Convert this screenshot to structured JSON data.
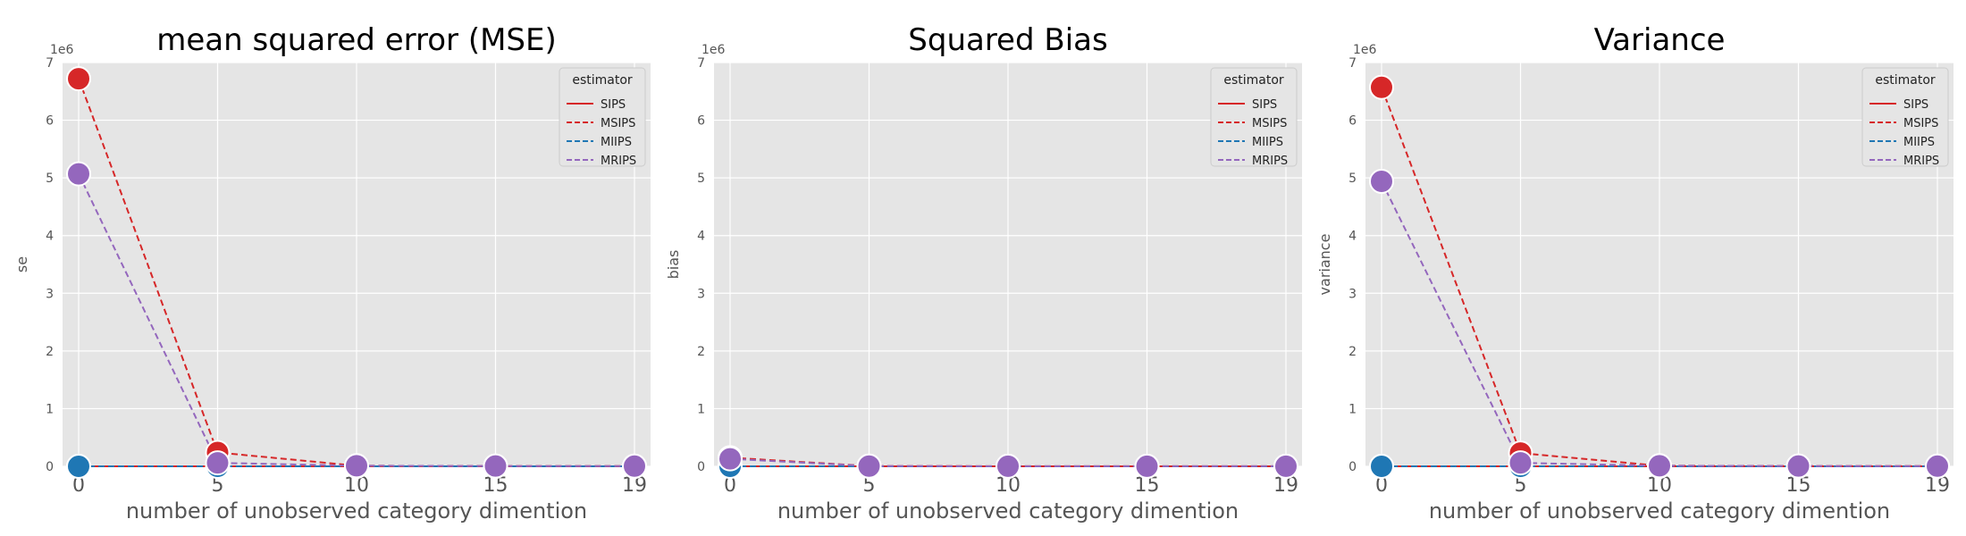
{
  "chart_data": [
    {
      "type": "line",
      "title": "mean squared error (MSE)",
      "xlabel": "number of unobserved category dimention",
      "ylabel": "se",
      "y_offset_label": "1e6",
      "categories": [
        "0",
        "5",
        "10",
        "15",
        "19"
      ],
      "yticks": [
        "0",
        "1",
        "2",
        "3",
        "4",
        "5",
        "6",
        "7"
      ],
      "ylim": [
        0,
        7
      ],
      "grid": true,
      "legend_title": "estimator",
      "legend_position": "top-right",
      "series": [
        {
          "name": "SIPS",
          "color": "#d62728",
          "dash": "solid",
          "values": [
            0,
            0,
            0,
            0,
            0
          ]
        },
        {
          "name": "MSIPS",
          "color": "#d62728",
          "dash": "dashed",
          "values": [
            6.72,
            0.24,
            0.01,
            0.005,
            0.003
          ]
        },
        {
          "name": "MIIPS",
          "color": "#1f77b4",
          "dash": "dashed",
          "values": [
            0,
            0,
            0,
            0,
            0
          ]
        },
        {
          "name": "MRIPS",
          "color": "#9467bd",
          "dash": "dashed",
          "values": [
            5.07,
            0.06,
            0.01,
            0.005,
            0.003
          ]
        }
      ]
    },
    {
      "type": "line",
      "title": "Squared Bias",
      "xlabel": "number of unobserved category dimention",
      "ylabel": "bias",
      "y_offset_label": "1e6",
      "categories": [
        "0",
        "5",
        "10",
        "15",
        "19"
      ],
      "yticks": [
        "0",
        "1",
        "2",
        "3",
        "4",
        "5",
        "6",
        "7"
      ],
      "ylim": [
        0,
        7
      ],
      "grid": true,
      "legend_title": "estimator",
      "legend_position": "top-right",
      "series": [
        {
          "name": "SIPS",
          "color": "#d62728",
          "dash": "solid",
          "values": [
            0,
            0,
            0,
            0,
            0
          ]
        },
        {
          "name": "MSIPS",
          "color": "#d62728",
          "dash": "dashed",
          "values": [
            0.15,
            0.005,
            0.002,
            0.001,
            0.001
          ]
        },
        {
          "name": "MIIPS",
          "color": "#1f77b4",
          "dash": "dashed",
          "values": [
            0,
            0,
            0,
            0,
            0
          ]
        },
        {
          "name": "MRIPS",
          "color": "#9467bd",
          "dash": "dashed",
          "values": [
            0.13,
            0.004,
            0.002,
            0.001,
            0.001
          ]
        }
      ]
    },
    {
      "type": "line",
      "title": "Variance",
      "xlabel": "number of unobserved category dimention",
      "ylabel": "variance",
      "y_offset_label": "1e6",
      "categories": [
        "0",
        "5",
        "10",
        "15",
        "19"
      ],
      "yticks": [
        "0",
        "1",
        "2",
        "3",
        "4",
        "5",
        "6",
        "7"
      ],
      "ylim": [
        0,
        7
      ],
      "grid": true,
      "legend_title": "estimator",
      "legend_position": "top-right",
      "series": [
        {
          "name": "SIPS",
          "color": "#d62728",
          "dash": "solid",
          "values": [
            0,
            0,
            0,
            0,
            0
          ]
        },
        {
          "name": "MSIPS",
          "color": "#d62728",
          "dash": "dashed",
          "values": [
            6.57,
            0.23,
            0.01,
            0.005,
            0.003
          ]
        },
        {
          "name": "MIIPS",
          "color": "#1f77b4",
          "dash": "dashed",
          "values": [
            0,
            0,
            0,
            0,
            0
          ]
        },
        {
          "name": "MRIPS",
          "color": "#9467bd",
          "dash": "dashed",
          "values": [
            4.94,
            0.06,
            0.01,
            0.005,
            0.003
          ]
        }
      ]
    }
  ]
}
